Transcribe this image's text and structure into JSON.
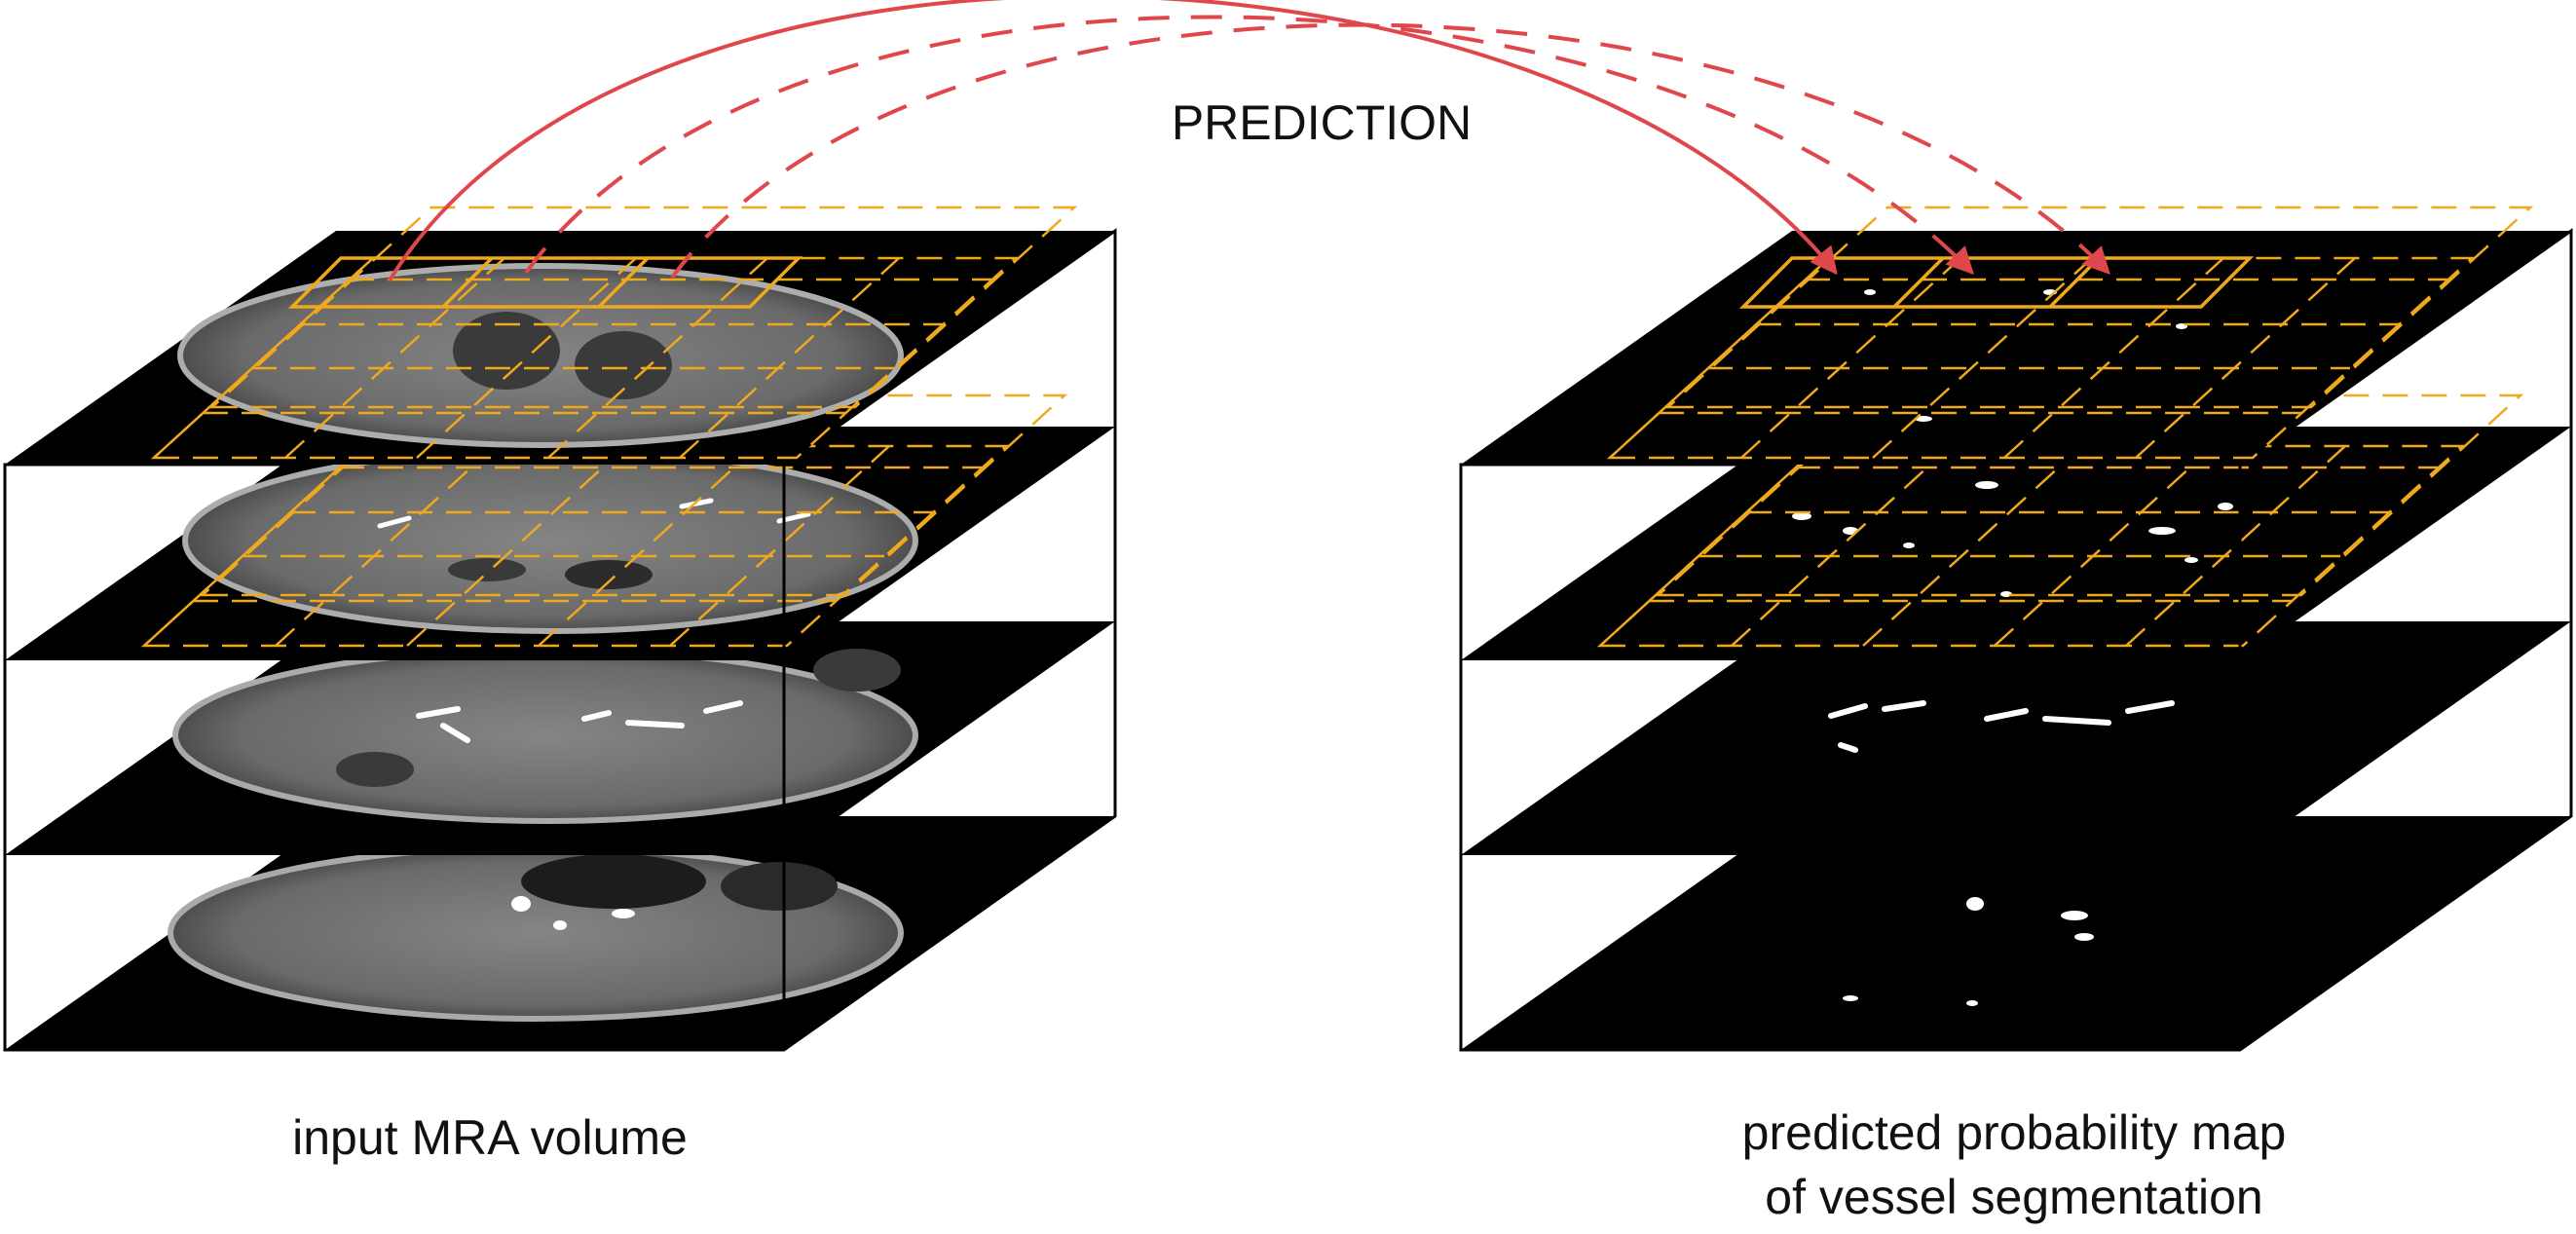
{
  "diagram": {
    "arrow_label": "PREDICTION",
    "left_caption": "input MRA volume",
    "right_caption_line1": "predicted probability map",
    "right_caption_line2": "of vessel segmentation"
  },
  "colors": {
    "arrow": "#e0474c",
    "grid": "#f0a81c",
    "slice": "#000000",
    "tissue": "#6f6f6f",
    "vessel": "#ffffff"
  }
}
